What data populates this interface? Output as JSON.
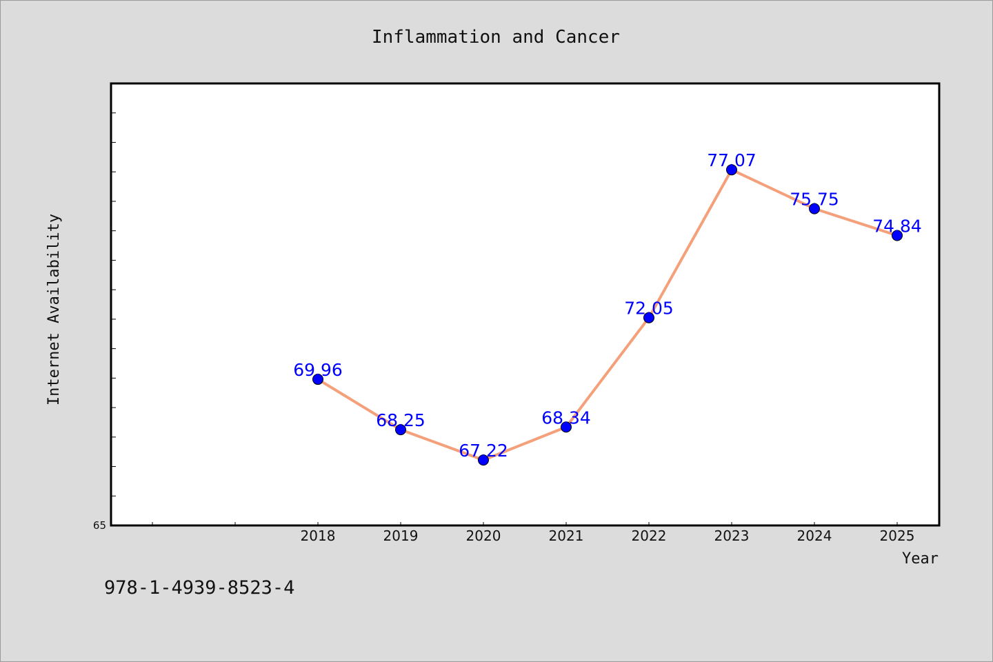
{
  "chart_data": {
    "type": "line",
    "title": "Inflammation and Cancer",
    "xlabel": "Year",
    "ylabel": "Internet Availability",
    "categories": [
      "2018",
      "2019",
      "2020",
      "2021",
      "2022",
      "2023",
      "2024",
      "2025"
    ],
    "series": [
      {
        "values": [
          69.96,
          68.25,
          67.22,
          68.34,
          72.05,
          77.07,
          75.75,
          74.84
        ],
        "labels": [
          "69.96",
          "68.25",
          "67.22",
          "68.34",
          "72.05",
          "77.07",
          "75.75",
          "74.84"
        ],
        "line_color": "#f4a07a",
        "marker_color": "#0000ff"
      }
    ],
    "y_tick_labels": [
      "65"
    ],
    "ylim": [
      65,
      80
    ],
    "grid": false,
    "legend": "none"
  },
  "footer": {
    "text": "978-1-4939-8523-4"
  },
  "colors": {
    "background": "#dcdcdc",
    "plot_area": "#ffffff",
    "data_label": "#0000ff"
  }
}
